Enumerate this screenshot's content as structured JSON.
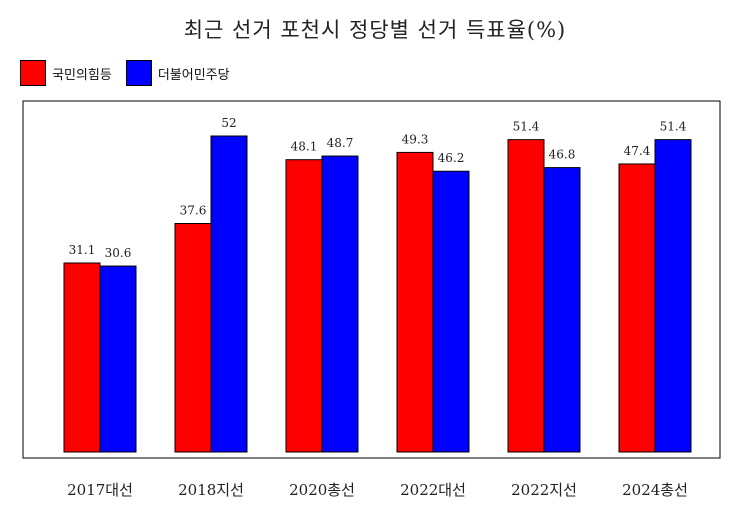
{
  "chart_data": {
    "type": "bar",
    "title": "최근 선거 포천시 정당별 선거 득표율(%)",
    "categories": [
      "2017대선",
      "2018지선",
      "2020총선",
      "2022대선",
      "2022지선",
      "2024총선"
    ],
    "series": [
      {
        "name": "국민의힘등",
        "color": "#ff0000",
        "values": [
          31.1,
          37.6,
          48.1,
          49.3,
          51.4,
          47.4
        ]
      },
      {
        "name": "더불어민주당",
        "color": "#0000ff",
        "values": [
          30.6,
          52,
          48.7,
          46.2,
          46.8,
          51.4
        ]
      }
    ],
    "value_labels": [
      [
        "31.1",
        "37.6",
        "48.1",
        "49.3",
        "51.4",
        "47.4"
      ],
      [
        "30.6",
        "52",
        "48.7",
        "46.2",
        "46.8",
        "51.4"
      ]
    ],
    "ylim": [
      0,
      54.5
    ],
    "grid": false,
    "legend_position": "top-left"
  }
}
